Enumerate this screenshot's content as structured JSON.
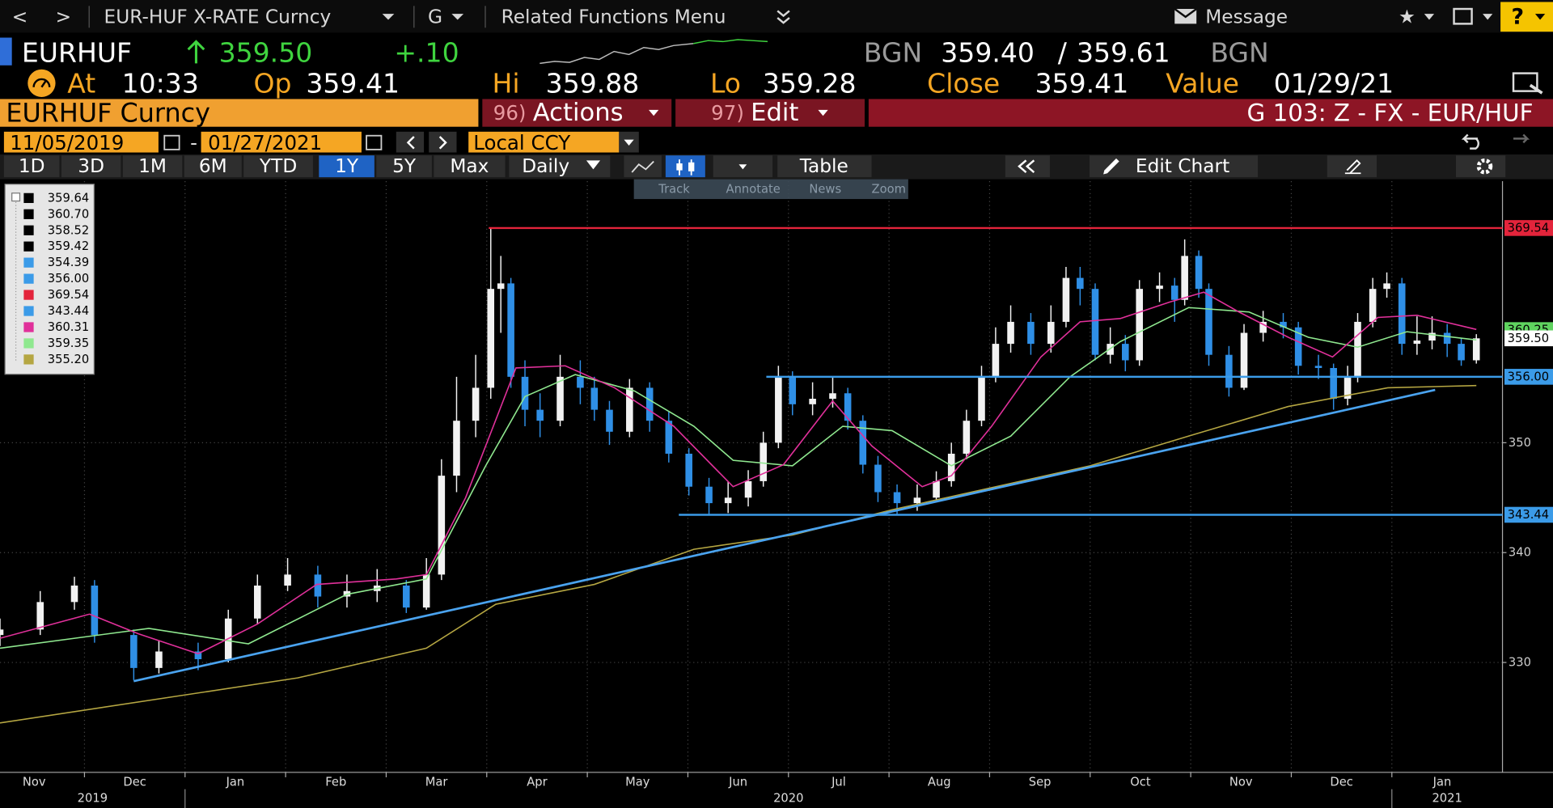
{
  "toolbar": {
    "back": "<",
    "forward": ">",
    "security": "EUR-HUF X-RATE Curncy",
    "g": "G",
    "menu": "Related Functions Menu",
    "message": "Message",
    "help": "?"
  },
  "quote": {
    "ticker": "EURHUF",
    "last": "359.50",
    "change": "+.10",
    "bid_source": "BGN",
    "bid": "359.40",
    "separator": "/",
    "ask": "359.61",
    "ask_source": "BGN"
  },
  "stats": [
    {
      "label": "At",
      "value": "10:33"
    },
    {
      "label": "Op",
      "value": "359.41"
    },
    {
      "label": "Hi",
      "value": "359.88"
    },
    {
      "label": "Lo",
      "value": "359.28"
    },
    {
      "label": "Close",
      "value": "359.41"
    },
    {
      "label": "Value",
      "value": "01/29/21"
    }
  ],
  "tabs": {
    "security": "EURHUF Curncy",
    "actions": {
      "number": "96)",
      "label": "Actions"
    },
    "edit": {
      "number": "97)",
      "label": "Edit"
    },
    "page": "G 103: Z - FX - EUR/HUF"
  },
  "range": {
    "start": "11/05/2019",
    "separator": "-",
    "end": "01/27/2021",
    "currency": "Local CCY"
  },
  "periods": [
    "1D",
    "3D",
    "1M",
    "6M",
    "YTD",
    "1Y",
    "5Y",
    "Max"
  ],
  "active_period": 5,
  "frequency": "Daily",
  "table": "Table",
  "edit_chart": "Edit Chart",
  "chart_tools": [
    "Track",
    "Annotate",
    "News",
    "Zoom"
  ],
  "chart_data": {
    "type": "candlestick",
    "background": "#000000",
    "up_color": "#f2f2f2",
    "down_color": "#2f8fe6",
    "xlim": [
      0.16,
      15.1
    ],
    "ylim": [
      320,
      373.8
    ],
    "yticks": [
      330,
      340,
      350
    ],
    "xticks": [
      {
        "value": 0.5,
        "label": "Nov"
      },
      {
        "value": 1.5,
        "label": "Dec"
      },
      {
        "value": 2.5,
        "label": "Jan"
      },
      {
        "value": 3.5,
        "label": "Feb"
      },
      {
        "value": 4.5,
        "label": "Mar"
      },
      {
        "value": 5.5,
        "label": "Apr"
      },
      {
        "value": 6.5,
        "label": "May"
      },
      {
        "value": 7.5,
        "label": "Jun"
      },
      {
        "value": 8.5,
        "label": "Jul"
      },
      {
        "value": 9.5,
        "label": "Aug"
      },
      {
        "value": 10.5,
        "label": "Sep"
      },
      {
        "value": 11.5,
        "label": "Oct"
      },
      {
        "value": 12.5,
        "label": "Nov"
      },
      {
        "value": 13.5,
        "label": "Dec"
      },
      {
        "value": 14.5,
        "label": "Jan"
      }
    ],
    "x_grid": [
      1,
      2,
      3,
      4,
      5,
      6,
      7,
      8,
      9,
      10,
      11,
      12,
      13,
      14
    ],
    "years": [
      {
        "value": 1.08,
        "label": "2019"
      },
      {
        "value": 8,
        "label": "2020"
      },
      {
        "value": 14.55,
        "label": "2021"
      }
    ],
    "year_breaks": [
      2,
      14
    ],
    "grid": true,
    "x": [
      0.16,
      0.56,
      0.9,
      1.1,
      1.49,
      1.74,
      2.13,
      2.43,
      2.72,
      3.02,
      3.32,
      3.61,
      3.91,
      4.2,
      4.4,
      4.55,
      4.7,
      4.89,
      5.04,
      5.14,
      5.24,
      5.38,
      5.53,
      5.73,
      5.93,
      6.07,
      6.22,
      6.42,
      6.62,
      6.81,
      7.01,
      7.21,
      7.4,
      7.6,
      7.75,
      7.9,
      8.04,
      8.24,
      8.44,
      8.59,
      8.74,
      8.89,
      9.08,
      9.28,
      9.47,
      9.62,
      9.77,
      9.92,
      10.06,
      10.21,
      10.41,
      10.61,
      10.76,
      10.9,
      11.05,
      11.2,
      11.35,
      11.49,
      11.69,
      11.84,
      11.94,
      12.08,
      12.18,
      12.38,
      12.53,
      12.72,
      12.92,
      13.07,
      13.27,
      13.42,
      13.56,
      13.66,
      13.81,
      13.95,
      14.1,
      14.25,
      14.4,
      14.55,
      14.69,
      14.84
    ],
    "open": [
      332.5,
      333,
      335.5,
      337,
      332.5,
      329.5,
      331,
      330.3,
      334,
      337,
      338,
      336,
      336.5,
      337,
      335,
      338,
      347,
      352,
      355,
      364,
      364.5,
      356,
      353,
      352,
      356,
      355,
      353,
      351,
      355,
      352,
      349,
      346,
      344.5,
      345,
      346.5,
      350,
      356,
      353.5,
      354,
      354.5,
      352,
      348,
      345.5,
      344.5,
      345,
      346.5,
      349,
      352,
      356,
      359,
      361,
      359,
      361,
      365,
      364,
      358,
      359,
      357.5,
      364,
      364.3,
      363,
      367,
      364,
      358,
      355,
      360,
      361,
      360.5,
      357,
      356.8,
      354,
      356,
      361,
      364,
      364.5,
      359,
      359.3,
      360,
      359,
      357.5
    ],
    "high": [
      334,
      336.5,
      337.8,
      337.5,
      333,
      332,
      331.8,
      334.8,
      338,
      339.5,
      338.8,
      338,
      338.5,
      337.5,
      339.5,
      348.5,
      356,
      358,
      369.5,
      367,
      365,
      357.5,
      354.5,
      358,
      357.5,
      356,
      353.8,
      355.8,
      355.5,
      352.8,
      349.5,
      346.8,
      346.5,
      347.5,
      351,
      357,
      356.5,
      355.5,
      356,
      355,
      352.5,
      348.8,
      346.2,
      346.2,
      347.4,
      350,
      353,
      357,
      360.5,
      362.5,
      361.8,
      362.5,
      366,
      366,
      364.5,
      360.5,
      359.8,
      364.8,
      365.5,
      365,
      368.5,
      367.5,
      364.5,
      358.8,
      360.8,
      362,
      361.8,
      361,
      358,
      357.2,
      357,
      361.8,
      365,
      365.5,
      365,
      361.5,
      361.5,
      360.8,
      359.5,
      359.88
    ],
    "low": [
      331.5,
      332.5,
      334.8,
      331.8,
      328.4,
      329,
      329.3,
      330,
      333.5,
      336.5,
      335,
      335,
      335.5,
      334.5,
      334.8,
      337.5,
      345.5,
      350.5,
      354,
      360,
      355,
      351.5,
      350.5,
      351.5,
      353.5,
      352,
      349.8,
      350.5,
      351,
      348.2,
      345.2,
      343.4,
      343.6,
      344.2,
      346,
      349.5,
      352.5,
      352.5,
      353.2,
      351.2,
      347.2,
      344.6,
      343.5,
      343.8,
      344.6,
      346,
      348.5,
      351.5,
      355.5,
      358.2,
      358,
      358.2,
      360.5,
      362.5,
      357.5,
      357.2,
      356.5,
      357,
      362.8,
      361,
      362.5,
      363.2,
      357,
      354.2,
      354.8,
      359.2,
      359.5,
      356.2,
      355.8,
      353,
      353.4,
      355.5,
      360.5,
      363.2,
      358,
      358,
      358.5,
      357.8,
      357,
      357.2
    ],
    "close": [
      333,
      335.5,
      337,
      332.5,
      329.5,
      331,
      330.3,
      334,
      337,
      338,
      336,
      336.5,
      337,
      335,
      338,
      347,
      352,
      355,
      364,
      364.5,
      356,
      353,
      352,
      356,
      355,
      353,
      351,
      355,
      352,
      349,
      346,
      344.5,
      345,
      346.5,
      350,
      356,
      353.5,
      354,
      354.5,
      352,
      348,
      345.5,
      344.5,
      345,
      346.5,
      349,
      352,
      356,
      359,
      361,
      359,
      361,
      365,
      364,
      358,
      359,
      357.5,
      364,
      364.3,
      363,
      367,
      364,
      358,
      355,
      360,
      361,
      360.5,
      357,
      356.8,
      354,
      356,
      361,
      364,
      364.5,
      359,
      359.3,
      360,
      359,
      357.5,
      359.5
    ],
    "overlays": [
      {
        "color": "#b5a642",
        "x": [
          0.16,
          3.12,
          4.4,
          5.09,
          6.07,
          7.06,
          8.04,
          9.03,
          11.0,
          11.98,
          12.97,
          13.96,
          14.84
        ],
        "values": [
          324.5,
          328.6,
          331.3,
          335.3,
          337.1,
          340.3,
          341.6,
          343.9,
          347.9,
          350.6,
          353.3,
          355,
          355.2
        ]
      },
      {
        "color": "#8fe88f",
        "x": [
          0.16,
          1.64,
          2.63,
          3.61,
          4.4,
          4.99,
          5.38,
          5.88,
          6.47,
          7.06,
          7.45,
          8.04,
          8.54,
          9.03,
          9.62,
          10.21,
          10.8,
          11.3,
          11.98,
          12.58,
          13.17,
          13.66,
          14.15,
          14.84
        ],
        "values": [
          331.3,
          333.1,
          331.7,
          336.2,
          337.6,
          347.9,
          354.2,
          356.2,
          354.7,
          351.5,
          348.4,
          347.9,
          351.5,
          351.1,
          347.9,
          350.6,
          356,
          359.2,
          362.3,
          361.9,
          359.6,
          358.7,
          360.1,
          359.35
        ]
      },
      {
        "color": "#e0309a",
        "x": [
          0.16,
          1.05,
          1.54,
          2.13,
          2.72,
          3.31,
          4.1,
          4.4,
          4.79,
          5.29,
          5.78,
          6.27,
          6.86,
          7.45,
          7.95,
          8.44,
          8.83,
          9.33,
          9.62,
          10.02,
          10.51,
          10.9,
          11.3,
          11.79,
          12.13,
          12.48,
          12.97,
          13.41,
          13.86,
          14.25,
          14.84
        ],
        "values": [
          332.2,
          334.4,
          332.6,
          330.8,
          333.5,
          337.1,
          337.6,
          338,
          345,
          356.8,
          357,
          355,
          351.5,
          346,
          348,
          353.8,
          349.7,
          346,
          347,
          351.5,
          357.8,
          361,
          361.3,
          362.8,
          363.7,
          361.9,
          359.6,
          357.8,
          361.4,
          361.6,
          360.31
        ]
      }
    ],
    "trendline": {
      "color": "#4aa3ef",
      "x": [
        1.49,
        14.43
      ],
      "values": [
        328.3,
        354.8
      ]
    },
    "levels": [
      {
        "value": 369.54,
        "label": "369.54",
        "color": "#e3243b",
        "start": 5.02
      },
      {
        "value": 356,
        "label": "356.00",
        "color": "#3b9be8",
        "start": 7.78
      },
      {
        "value": 343.44,
        "label": "343.44",
        "color": "#3b9be8",
        "start": 6.91
      }
    ],
    "tags": [
      {
        "value": 360.25,
        "label": "360.25",
        "color": "#5fd35f"
      },
      {
        "value": 359.5,
        "label": "359.50",
        "color": "#ffffff"
      }
    ],
    "legend": [
      {
        "color": "#000000",
        "text": "359.64"
      },
      {
        "color": "#000000",
        "text": "360.70"
      },
      {
        "color": "#000000",
        "text": "358.52"
      },
      {
        "color": "#000000",
        "text": "359.42"
      },
      {
        "color": "#3b9be8",
        "text": "354.39"
      },
      {
        "color": "#3b9be8",
        "text": "356.00"
      },
      {
        "color": "#e3243b",
        "text": "369.54"
      },
      {
        "color": "#3b9be8",
        "text": "343.44"
      },
      {
        "color": "#e0309a",
        "text": "360.31"
      },
      {
        "color": "#8fe88f",
        "text": "359.35"
      },
      {
        "color": "#b5a642",
        "text": "355.20"
      }
    ]
  }
}
